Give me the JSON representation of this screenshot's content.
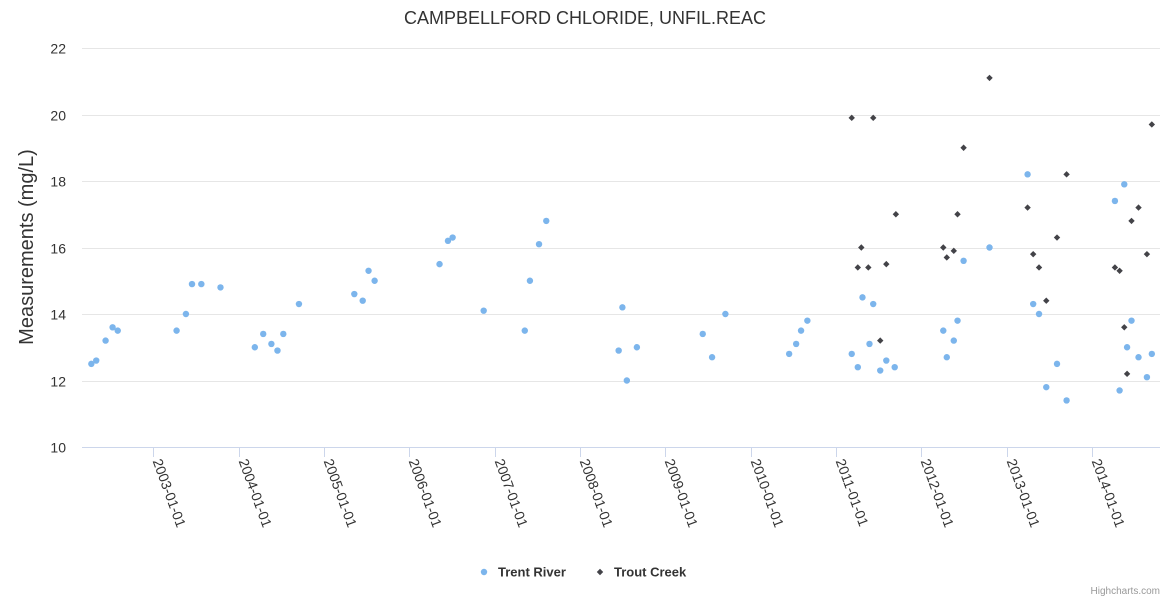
{
  "chart_data": {
    "type": "scatter",
    "title": "CAMPBELLFORD CHLORIDE, UNFIL.REAC",
    "ylabel": "Measurements (mg/L)",
    "xlabel": "",
    "ylim": [
      10,
      22
    ],
    "yticks": [
      10,
      12,
      14,
      16,
      18,
      20,
      22
    ],
    "xlim": [
      "2002-03-01",
      "2014-10-20"
    ],
    "xticks": [
      "2003-01-01",
      "2004-01-01",
      "2005-01-01",
      "2006-01-01",
      "2007-01-01",
      "2008-01-01",
      "2009-01-01",
      "2010-01-01",
      "2011-01-01",
      "2012-01-01",
      "2013-01-01",
      "2014-01-01"
    ],
    "grid": true,
    "legend_position": "bottom-center",
    "series": [
      {
        "name": "Trent River",
        "color": "#7cb5ec",
        "marker": "circle",
        "points": [
          [
            "2002-04-10",
            12.5
          ],
          [
            "2002-05-01",
            12.6
          ],
          [
            "2002-06-10",
            13.2
          ],
          [
            "2002-07-10",
            13.6
          ],
          [
            "2002-08-01",
            13.5
          ],
          [
            "2003-04-10",
            13.5
          ],
          [
            "2003-05-20",
            14.0
          ],
          [
            "2003-06-15",
            14.9
          ],
          [
            "2003-07-25",
            14.9
          ],
          [
            "2003-10-15",
            14.8
          ],
          [
            "2004-03-10",
            13.0
          ],
          [
            "2004-04-15",
            13.4
          ],
          [
            "2004-05-20",
            13.1
          ],
          [
            "2004-06-15",
            12.9
          ],
          [
            "2004-07-10",
            13.4
          ],
          [
            "2004-09-15",
            14.3
          ],
          [
            "2005-05-10",
            14.6
          ],
          [
            "2005-06-15",
            14.4
          ],
          [
            "2005-07-10",
            15.3
          ],
          [
            "2005-08-05",
            15.0
          ],
          [
            "2006-05-10",
            15.5
          ],
          [
            "2006-06-15",
            16.2
          ],
          [
            "2006-07-05",
            16.3
          ],
          [
            "2006-11-15",
            14.1
          ],
          [
            "2007-05-10",
            13.5
          ],
          [
            "2007-06-01",
            15.0
          ],
          [
            "2007-07-10",
            16.1
          ],
          [
            "2007-08-10",
            16.8
          ],
          [
            "2008-06-15",
            12.9
          ],
          [
            "2008-07-01",
            14.2
          ],
          [
            "2008-07-20",
            12.0
          ],
          [
            "2008-09-01",
            13.0
          ],
          [
            "2009-06-10",
            13.4
          ],
          [
            "2009-07-20",
            12.7
          ],
          [
            "2009-09-15",
            14.0
          ],
          [
            "2010-06-15",
            12.8
          ],
          [
            "2010-07-15",
            13.1
          ],
          [
            "2010-08-05",
            13.5
          ],
          [
            "2010-09-01",
            13.8
          ],
          [
            "2011-03-10",
            12.8
          ],
          [
            "2011-04-05",
            12.4
          ],
          [
            "2011-04-25",
            14.5
          ],
          [
            "2011-05-25",
            13.1
          ],
          [
            "2011-06-10",
            14.3
          ],
          [
            "2011-07-10",
            12.3
          ],
          [
            "2011-08-05",
            12.6
          ],
          [
            "2011-09-10",
            12.4
          ],
          [
            "2012-04-05",
            13.5
          ],
          [
            "2012-04-20",
            12.7
          ],
          [
            "2012-05-20",
            13.2
          ],
          [
            "2012-06-05",
            13.8
          ],
          [
            "2012-07-01",
            15.6
          ],
          [
            "2012-10-20",
            16.0
          ],
          [
            "2013-04-01",
            18.2
          ],
          [
            "2013-04-25",
            14.3
          ],
          [
            "2013-05-20",
            14.0
          ],
          [
            "2013-06-20",
            11.8
          ],
          [
            "2013-08-05",
            12.5
          ],
          [
            "2013-09-15",
            11.4
          ],
          [
            "2014-04-10",
            17.4
          ],
          [
            "2014-04-30",
            11.7
          ],
          [
            "2014-05-20",
            17.9
          ],
          [
            "2014-06-01",
            13.0
          ],
          [
            "2014-06-20",
            13.8
          ],
          [
            "2014-07-20",
            12.7
          ],
          [
            "2014-08-25",
            12.1
          ],
          [
            "2014-09-15",
            12.8
          ]
        ]
      },
      {
        "name": "Trout Creek",
        "color": "#434348",
        "marker": "diamond",
        "points": [
          [
            "2011-03-10",
            19.9
          ],
          [
            "2011-04-05",
            15.4
          ],
          [
            "2011-04-20",
            16.0
          ],
          [
            "2011-05-20",
            15.4
          ],
          [
            "2011-06-10",
            19.9
          ],
          [
            "2011-07-10",
            13.2
          ],
          [
            "2011-08-05",
            15.5
          ],
          [
            "2011-09-15",
            17.0
          ],
          [
            "2012-04-05",
            16.0
          ],
          [
            "2012-04-20",
            15.7
          ],
          [
            "2012-05-20",
            15.9
          ],
          [
            "2012-06-05",
            17.0
          ],
          [
            "2012-07-01",
            19.0
          ],
          [
            "2012-10-20",
            21.1
          ],
          [
            "2013-04-01",
            17.2
          ],
          [
            "2013-04-25",
            15.8
          ],
          [
            "2013-05-20",
            15.4
          ],
          [
            "2013-06-20",
            14.4
          ],
          [
            "2013-08-05",
            16.3
          ],
          [
            "2013-09-15",
            18.2
          ],
          [
            "2014-04-10",
            15.4
          ],
          [
            "2014-04-30",
            15.3
          ],
          [
            "2014-05-20",
            13.6
          ],
          [
            "2014-06-01",
            12.2
          ],
          [
            "2014-06-20",
            16.8
          ],
          [
            "2014-07-20",
            17.2
          ],
          [
            "2014-08-25",
            15.8
          ],
          [
            "2014-09-15",
            19.7
          ]
        ]
      }
    ]
  },
  "credits": "Highcharts.com"
}
